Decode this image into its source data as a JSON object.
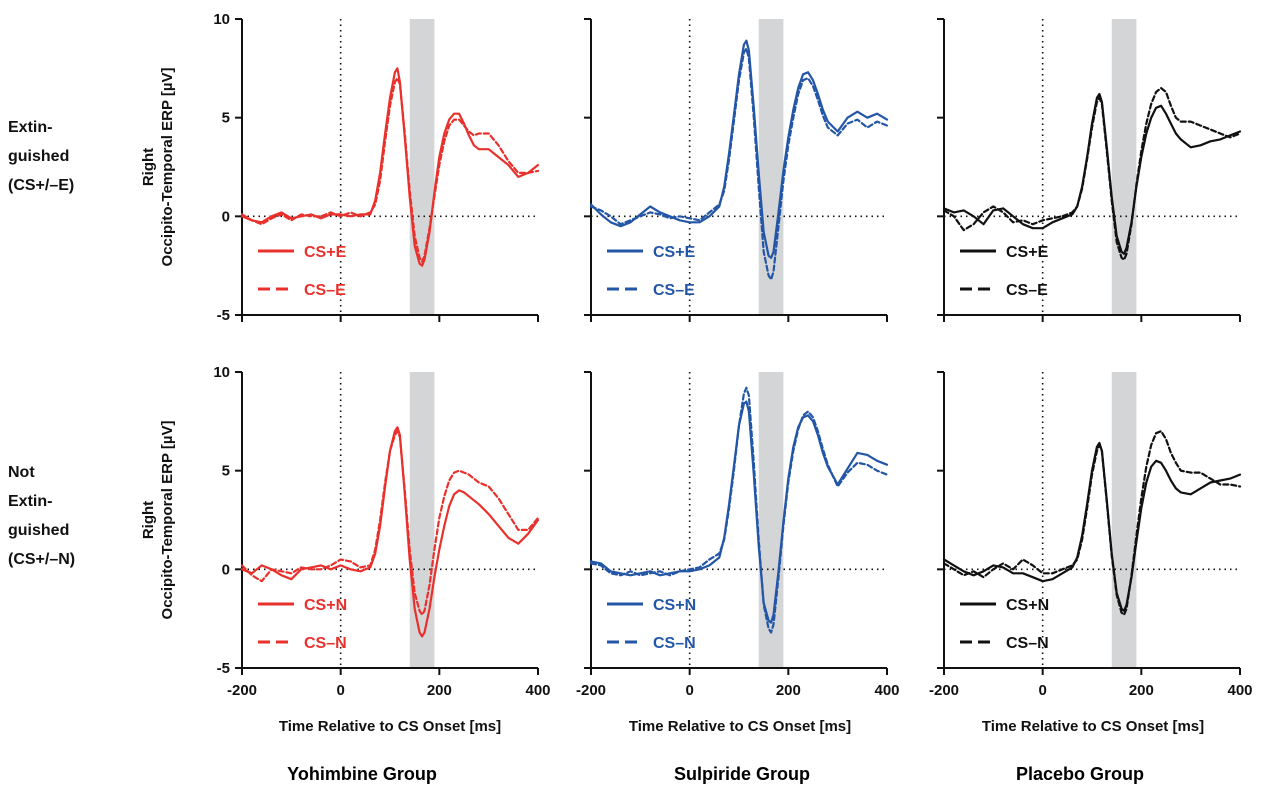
{
  "x_axis": {
    "label": "Time Relative to CS Onset [ms]",
    "ticks": [
      -200,
      0,
      200,
      400
    ],
    "xlim": [
      -200,
      400
    ]
  },
  "y_axis": {
    "label_line1": "Right",
    "label_line2": "Occipito-Temporal ERP [µV]",
    "ticks": [
      -5,
      0,
      5,
      10
    ],
    "ylim": [
      -5,
      10
    ]
  },
  "rows": [
    {
      "label_lines": [
        "Extin-",
        "guished",
        "(CS+/–E)"
      ]
    },
    {
      "label_lines": [
        "Not",
        "Extin-",
        "guished",
        "(CS+/–N)"
      ]
    }
  ],
  "groups": [
    {
      "name": "Yohimbine Group",
      "color": "#e8312c"
    },
    {
      "name": "Sulpiride Group",
      "color": "#2356a6"
    },
    {
      "name": "Placebo Group",
      "color": "#111111"
    }
  ],
  "shaded_window_ms": [
    140,
    190
  ],
  "chart_data": [
    {
      "type": "line",
      "row": 0,
      "group": "Yohimbine Group",
      "x": [
        -200,
        -180,
        -160,
        -140,
        -120,
        -100,
        -80,
        -60,
        -40,
        -20,
        0,
        20,
        40,
        60,
        70,
        80,
        90,
        100,
        110,
        115,
        120,
        130,
        140,
        150,
        160,
        165,
        170,
        180,
        190,
        200,
        210,
        220,
        230,
        240,
        250,
        260,
        270,
        280,
        300,
        320,
        340,
        360,
        380,
        400
      ],
      "series": [
        {
          "name": "CS+E",
          "dash": "solid",
          "values": [
            0.0,
            -0.2,
            -0.3,
            0.0,
            0.2,
            -0.1,
            0.0,
            0.1,
            -0.1,
            0.1,
            0.1,
            0.0,
            0.1,
            0.1,
            0.8,
            2.2,
            4.2,
            6.0,
            7.3,
            7.5,
            6.8,
            4.0,
            1.0,
            -1.5,
            -2.4,
            -2.5,
            -2.2,
            -0.8,
            1.2,
            3.0,
            4.2,
            4.9,
            5.2,
            5.2,
            4.7,
            4.1,
            3.6,
            3.4,
            3.4,
            3.0,
            2.6,
            2.0,
            2.2,
            2.6
          ]
        },
        {
          "name": "CS–E",
          "dash": "dashed",
          "values": [
            0.1,
            -0.2,
            -0.4,
            -0.1,
            0.1,
            -0.2,
            0.1,
            0.0,
            0.0,
            0.2,
            0.0,
            0.2,
            0.0,
            0.2,
            0.6,
            1.8,
            3.8,
            5.6,
            6.8,
            7.0,
            6.7,
            4.2,
            1.3,
            -1.0,
            -2.1,
            -2.3,
            -2.0,
            -0.6,
            1.0,
            2.6,
            3.8,
            4.6,
            4.9,
            4.9,
            4.6,
            4.3,
            4.1,
            4.2,
            4.2,
            3.6,
            2.8,
            2.2,
            2.2,
            2.3
          ]
        }
      ]
    },
    {
      "type": "line",
      "row": 0,
      "group": "Sulpiride Group",
      "x": [
        -200,
        -180,
        -160,
        -140,
        -120,
        -100,
        -80,
        -60,
        -40,
        -20,
        0,
        20,
        40,
        60,
        70,
        80,
        90,
        100,
        110,
        115,
        120,
        130,
        140,
        150,
        160,
        165,
        170,
        180,
        190,
        200,
        210,
        220,
        230,
        240,
        250,
        260,
        270,
        280,
        300,
        320,
        340,
        360,
        380,
        400
      ],
      "series": [
        {
          "name": "CS+E",
          "dash": "solid",
          "values": [
            0.6,
            0.1,
            -0.3,
            -0.5,
            -0.3,
            0.1,
            0.5,
            0.2,
            0.0,
            -0.2,
            -0.3,
            -0.3,
            0.0,
            0.5,
            1.5,
            3.2,
            5.2,
            7.2,
            8.7,
            8.9,
            8.4,
            5.5,
            2.2,
            -0.8,
            -2.0,
            -2.1,
            -1.8,
            0.2,
            2.3,
            4.0,
            5.4,
            6.5,
            7.2,
            7.3,
            6.9,
            6.2,
            5.4,
            4.8,
            4.3,
            5.0,
            5.3,
            5.0,
            5.2,
            4.9
          ]
        },
        {
          "name": "CS–E",
          "dash": "dashed",
          "values": [
            0.5,
            0.3,
            0.0,
            -0.4,
            -0.2,
            0.0,
            0.2,
            0.1,
            -0.1,
            0.0,
            -0.1,
            -0.2,
            0.2,
            0.6,
            1.3,
            2.9,
            4.9,
            6.9,
            8.3,
            8.5,
            8.0,
            5.0,
            1.5,
            -1.8,
            -3.0,
            -3.2,
            -2.8,
            -0.5,
            1.8,
            3.6,
            5.0,
            6.2,
            6.9,
            7.0,
            6.6,
            5.9,
            5.1,
            4.5,
            4.1,
            4.7,
            4.9,
            4.5,
            4.8,
            4.6
          ]
        }
      ]
    },
    {
      "type": "line",
      "row": 0,
      "group": "Placebo Group",
      "x": [
        -200,
        -180,
        -160,
        -140,
        -120,
        -100,
        -80,
        -60,
        -40,
        -20,
        0,
        20,
        40,
        60,
        70,
        80,
        90,
        100,
        110,
        115,
        120,
        130,
        140,
        150,
        160,
        165,
        170,
        180,
        190,
        200,
        210,
        220,
        230,
        240,
        250,
        260,
        270,
        280,
        300,
        320,
        340,
        360,
        380,
        400
      ],
      "series": [
        {
          "name": "CS+E",
          "dash": "solid",
          "values": [
            0.4,
            0.2,
            0.3,
            0.0,
            -0.4,
            0.3,
            0.4,
            0.0,
            -0.4,
            -0.6,
            -0.6,
            -0.3,
            -0.1,
            0.1,
            0.5,
            1.5,
            3.0,
            4.7,
            6.0,
            6.2,
            5.8,
            3.5,
            1.0,
            -1.0,
            -1.8,
            -1.9,
            -1.6,
            -0.3,
            1.5,
            3.0,
            4.2,
            5.0,
            5.5,
            5.6,
            5.2,
            4.7,
            4.2,
            3.9,
            3.5,
            3.6,
            3.8,
            3.9,
            4.1,
            4.3
          ]
        },
        {
          "name": "CS–E",
          "dash": "dashed",
          "values": [
            0.3,
            0.0,
            -0.7,
            -0.4,
            0.2,
            0.5,
            0.2,
            -0.3,
            -0.2,
            -0.4,
            -0.2,
            -0.1,
            0.0,
            0.2,
            0.5,
            1.4,
            2.9,
            4.5,
            5.8,
            6.0,
            5.7,
            3.3,
            0.8,
            -1.3,
            -2.1,
            -2.2,
            -1.9,
            -0.4,
            1.6,
            3.3,
            4.7,
            5.7,
            6.3,
            6.5,
            6.3,
            5.6,
            5.0,
            4.8,
            4.8,
            4.6,
            4.4,
            4.2,
            4.0,
            4.2
          ]
        }
      ]
    },
    {
      "type": "line",
      "row": 1,
      "group": "Yohimbine Group",
      "x": [
        -200,
        -180,
        -160,
        -140,
        -120,
        -100,
        -80,
        -60,
        -40,
        -20,
        0,
        20,
        40,
        60,
        70,
        80,
        90,
        100,
        110,
        115,
        120,
        130,
        140,
        150,
        160,
        165,
        170,
        180,
        190,
        200,
        210,
        220,
        230,
        240,
        250,
        260,
        270,
        280,
        300,
        320,
        340,
        360,
        380,
        400
      ],
      "series": [
        {
          "name": "CS+N",
          "dash": "solid",
          "values": [
            0.0,
            -0.2,
            0.2,
            0.0,
            -0.3,
            -0.5,
            0.0,
            0.1,
            0.2,
            0.0,
            0.2,
            0.0,
            -0.1,
            0.1,
            0.8,
            2.2,
            4.2,
            6.0,
            7.0,
            7.2,
            6.8,
            3.8,
            0.5,
            -2.0,
            -3.2,
            -3.4,
            -3.2,
            -2.0,
            -0.4,
            1.0,
            2.2,
            3.2,
            3.8,
            4.0,
            3.9,
            3.7,
            3.5,
            3.3,
            2.8,
            2.2,
            1.6,
            1.3,
            1.8,
            2.5
          ]
        },
        {
          "name": "CS–N",
          "dash": "dashed",
          "values": [
            0.2,
            -0.3,
            -0.6,
            0.0,
            -0.1,
            -0.2,
            0.1,
            0.0,
            0.0,
            0.2,
            0.5,
            0.4,
            0.1,
            0.2,
            1.0,
            2.5,
            4.4,
            6.0,
            6.8,
            7.0,
            6.7,
            4.0,
            1.0,
            -1.2,
            -2.1,
            -2.3,
            -2.1,
            -0.8,
            1.0,
            2.6,
            3.7,
            4.5,
            4.9,
            5.0,
            4.9,
            4.8,
            4.6,
            4.4,
            4.2,
            3.6,
            2.8,
            2.0,
            2.0,
            2.6
          ]
        }
      ]
    },
    {
      "type": "line",
      "row": 1,
      "group": "Sulpiride Group",
      "x": [
        -200,
        -180,
        -160,
        -140,
        -120,
        -100,
        -80,
        -60,
        -40,
        -20,
        0,
        20,
        40,
        60,
        70,
        80,
        90,
        100,
        110,
        115,
        120,
        130,
        140,
        150,
        160,
        165,
        170,
        180,
        190,
        200,
        210,
        220,
        230,
        240,
        250,
        260,
        270,
        280,
        300,
        320,
        340,
        360,
        380,
        400
      ],
      "series": [
        {
          "name": "CS+N",
          "dash": "solid",
          "values": [
            0.4,
            0.3,
            -0.1,
            -0.2,
            -0.3,
            -0.2,
            -0.1,
            -0.3,
            -0.2,
            -0.1,
            -0.1,
            0.0,
            0.2,
            0.6,
            1.6,
            3.3,
            5.3,
            7.3,
            8.4,
            8.5,
            8.0,
            4.8,
            1.2,
            -1.7,
            -2.6,
            -2.7,
            -2.3,
            -0.1,
            2.4,
            4.6,
            6.2,
            7.2,
            7.7,
            7.8,
            7.5,
            6.8,
            5.9,
            5.2,
            4.3,
            5.1,
            5.9,
            5.8,
            5.5,
            5.3
          ]
        },
        {
          "name": "CS–N",
          "dash": "dashed",
          "values": [
            0.3,
            0.2,
            -0.2,
            -0.3,
            -0.1,
            -0.3,
            -0.2,
            -0.1,
            -0.3,
            -0.1,
            0.0,
            0.1,
            0.5,
            0.8,
            1.5,
            3.1,
            5.1,
            7.3,
            8.9,
            9.2,
            8.8,
            5.4,
            1.5,
            -1.8,
            -3.0,
            -3.2,
            -2.8,
            -0.4,
            2.2,
            4.4,
            6.0,
            7.1,
            7.8,
            8.0,
            7.7,
            7.0,
            6.1,
            5.3,
            4.2,
            4.9,
            5.4,
            5.3,
            5.0,
            4.8
          ]
        }
      ]
    },
    {
      "type": "line",
      "row": 1,
      "group": "Placebo Group",
      "x": [
        -200,
        -180,
        -160,
        -140,
        -120,
        -100,
        -80,
        -60,
        -40,
        -20,
        0,
        20,
        40,
        60,
        70,
        80,
        90,
        100,
        110,
        115,
        120,
        130,
        140,
        150,
        160,
        165,
        170,
        180,
        190,
        200,
        210,
        220,
        230,
        240,
        250,
        260,
        270,
        280,
        300,
        320,
        340,
        360,
        380,
        400
      ],
      "series": [
        {
          "name": "CS+N",
          "dash": "solid",
          "values": [
            0.5,
            0.2,
            -0.1,
            -0.3,
            -0.1,
            0.2,
            0.1,
            -0.2,
            -0.2,
            -0.4,
            -0.6,
            -0.5,
            -0.2,
            0.1,
            0.6,
            1.7,
            3.3,
            5.0,
            6.2,
            6.4,
            6.0,
            3.5,
            0.8,
            -1.2,
            -2.0,
            -2.1,
            -1.8,
            -0.4,
            1.4,
            3.1,
            4.4,
            5.2,
            5.5,
            5.4,
            5.0,
            4.5,
            4.1,
            3.9,
            3.8,
            4.1,
            4.4,
            4.5,
            4.6,
            4.8
          ]
        },
        {
          "name": "CS–N",
          "dash": "dashed",
          "values": [
            0.3,
            0.0,
            -0.3,
            -0.1,
            -0.4,
            0.0,
            0.3,
            0.0,
            0.5,
            0.2,
            -0.2,
            -0.2,
            0.0,
            0.2,
            0.5,
            1.5,
            3.1,
            4.8,
            6.0,
            6.3,
            6.0,
            3.4,
            0.7,
            -1.3,
            -2.2,
            -2.3,
            -2.0,
            -0.3,
            1.7,
            3.6,
            5.2,
            6.3,
            6.9,
            7.0,
            6.6,
            5.9,
            5.4,
            5.0,
            4.9,
            4.9,
            4.6,
            4.3,
            4.3,
            4.2
          ]
        }
      ]
    }
  ]
}
